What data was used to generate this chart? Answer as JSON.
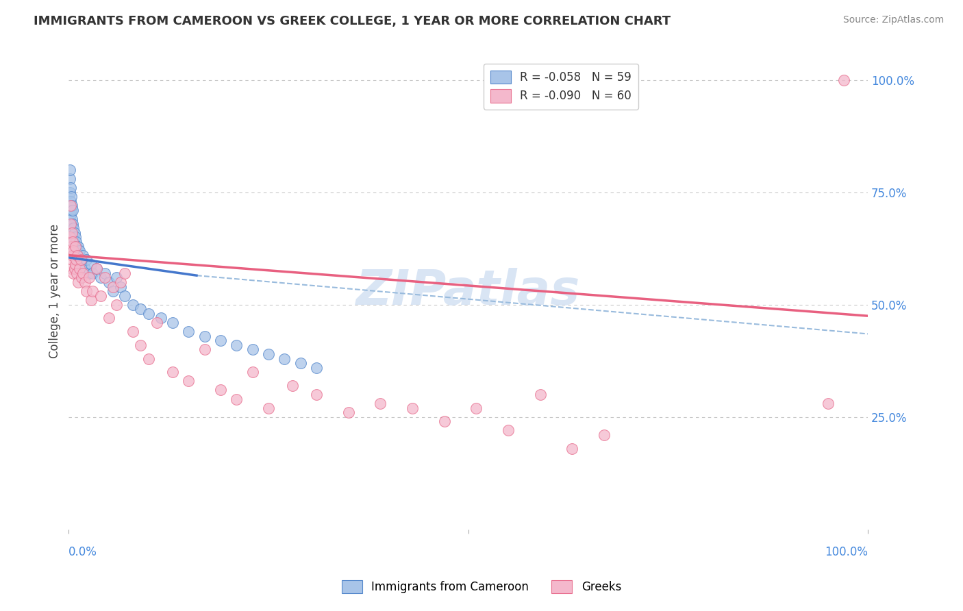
{
  "title": "IMMIGRANTS FROM CAMEROON VS GREEK COLLEGE, 1 YEAR OR MORE CORRELATION CHART",
  "source": "Source: ZipAtlas.com",
  "ylabel": "College, 1 year or more",
  "legend_blue_r": "-0.058",
  "legend_blue_n": "59",
  "legend_pink_r": "-0.090",
  "legend_pink_n": "60",
  "blue_fill": "#a8c4e8",
  "pink_fill": "#f4b8cc",
  "blue_edge": "#5588cc",
  "pink_edge": "#e87090",
  "blue_line_color": "#4477cc",
  "pink_line_color": "#e86080",
  "dashed_line_color": "#99bbdd",
  "right_label_color": "#4488dd",
  "watermark_color": "#c0d4ee",
  "blue_scatter_x": [
    0.001,
    0.001,
    0.001,
    0.001,
    0.002,
    0.002,
    0.002,
    0.003,
    0.003,
    0.003,
    0.004,
    0.004,
    0.004,
    0.005,
    0.005,
    0.005,
    0.006,
    0.006,
    0.007,
    0.007,
    0.008,
    0.008,
    0.009,
    0.009,
    0.01,
    0.01,
    0.011,
    0.012,
    0.013,
    0.015,
    0.016,
    0.018,
    0.02,
    0.022,
    0.025,
    0.028,
    0.03,
    0.035,
    0.04,
    0.045,
    0.05,
    0.055,
    0.06,
    0.065,
    0.07,
    0.08,
    0.09,
    0.1,
    0.115,
    0.13,
    0.15,
    0.17,
    0.19,
    0.21,
    0.23,
    0.25,
    0.27,
    0.29,
    0.31
  ],
  "blue_scatter_y": [
    0.72,
    0.75,
    0.78,
    0.8,
    0.7,
    0.73,
    0.76,
    0.68,
    0.71,
    0.74,
    0.66,
    0.69,
    0.72,
    0.65,
    0.68,
    0.71,
    0.64,
    0.67,
    0.63,
    0.66,
    0.62,
    0.65,
    0.61,
    0.64,
    0.6,
    0.63,
    0.61,
    0.63,
    0.62,
    0.6,
    0.59,
    0.61,
    0.58,
    0.6,
    0.57,
    0.59,
    0.57,
    0.58,
    0.56,
    0.57,
    0.55,
    0.53,
    0.56,
    0.54,
    0.52,
    0.5,
    0.49,
    0.48,
    0.47,
    0.46,
    0.44,
    0.43,
    0.42,
    0.41,
    0.4,
    0.39,
    0.38,
    0.37,
    0.36
  ],
  "pink_scatter_x": [
    0.001,
    0.001,
    0.002,
    0.002,
    0.003,
    0.003,
    0.004,
    0.004,
    0.005,
    0.005,
    0.006,
    0.006,
    0.007,
    0.008,
    0.008,
    0.009,
    0.01,
    0.011,
    0.012,
    0.013,
    0.015,
    0.016,
    0.018,
    0.02,
    0.022,
    0.025,
    0.028,
    0.03,
    0.035,
    0.04,
    0.045,
    0.05,
    0.055,
    0.06,
    0.065,
    0.07,
    0.08,
    0.09,
    0.1,
    0.11,
    0.13,
    0.15,
    0.17,
    0.19,
    0.21,
    0.23,
    0.25,
    0.28,
    0.31,
    0.35,
    0.39,
    0.43,
    0.47,
    0.51,
    0.55,
    0.59,
    0.63,
    0.67,
    0.95,
    0.97
  ],
  "pink_scatter_y": [
    0.62,
    0.65,
    0.68,
    0.72,
    0.58,
    0.63,
    0.6,
    0.66,
    0.61,
    0.64,
    0.57,
    0.62,
    0.58,
    0.59,
    0.63,
    0.6,
    0.57,
    0.61,
    0.55,
    0.58,
    0.6,
    0.56,
    0.57,
    0.55,
    0.53,
    0.56,
    0.51,
    0.53,
    0.58,
    0.52,
    0.56,
    0.47,
    0.54,
    0.5,
    0.55,
    0.57,
    0.44,
    0.41,
    0.38,
    0.46,
    0.35,
    0.33,
    0.4,
    0.31,
    0.29,
    0.35,
    0.27,
    0.32,
    0.3,
    0.26,
    0.28,
    0.27,
    0.24,
    0.27,
    0.22,
    0.3,
    0.18,
    0.21,
    0.28,
    1.0
  ],
  "blue_line_x": [
    0.0,
    0.16
  ],
  "blue_line_y": [
    0.605,
    0.565
  ],
  "dashed_line_x": [
    0.16,
    1.0
  ],
  "dashed_line_y": [
    0.565,
    0.435
  ],
  "pink_line_x": [
    0.0,
    1.0
  ],
  "pink_line_y": [
    0.61,
    0.475
  ],
  "xlim": [
    0,
    1.0
  ],
  "ylim": [
    0,
    1.06
  ],
  "ytick_vals": [
    0.25,
    0.5,
    0.75,
    1.0
  ],
  "ytick_labels": [
    "25.0%",
    "50.0%",
    "75.0%",
    "100.0%"
  ]
}
